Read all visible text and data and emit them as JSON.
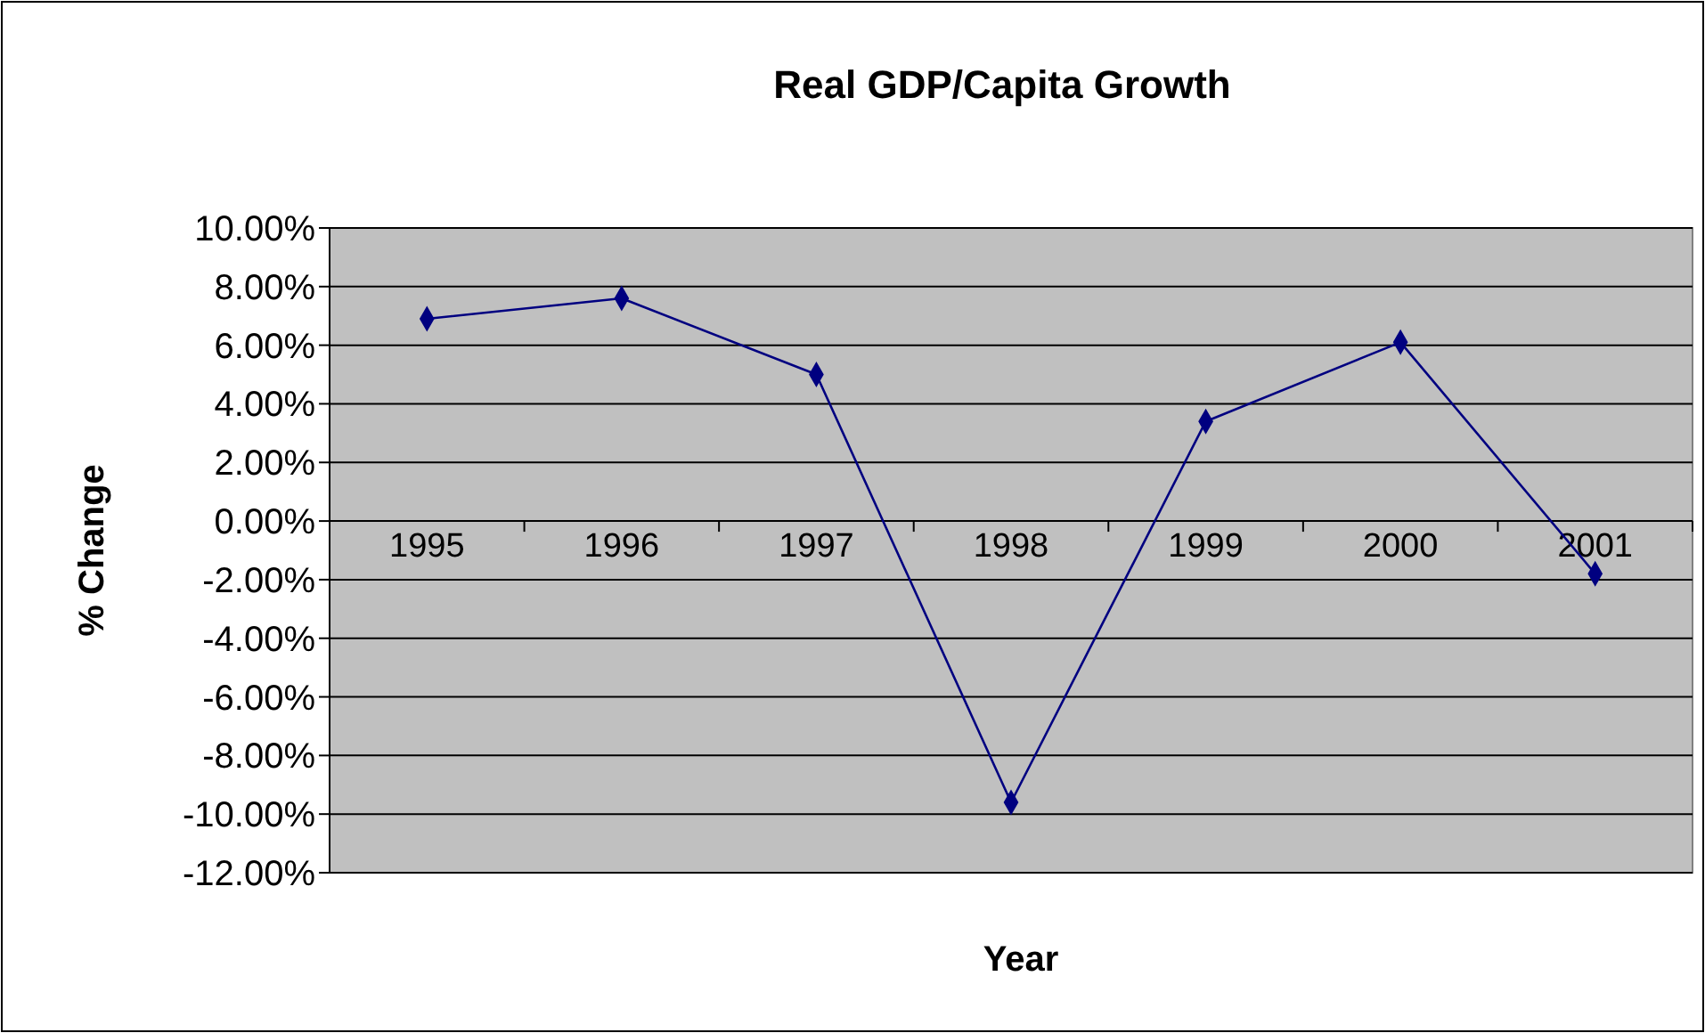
{
  "chart_data": {
    "type": "line",
    "title": "Real GDP/Capita Growth",
    "xlabel": "Year",
    "ylabel": "% Change",
    "categories": [
      "1995",
      "1996",
      "1997",
      "1998",
      "1999",
      "2000",
      "2001"
    ],
    "series": [
      {
        "color": "#000080",
        "values": [
          6.9,
          7.6,
          5.0,
          -9.6,
          3.4,
          6.1,
          -1.8
        ]
      }
    ],
    "ylim": [
      -12,
      10
    ],
    "yticks": [
      {
        "value": 10,
        "label": "10.00%"
      },
      {
        "value": 8,
        "label": "8.00%"
      },
      {
        "value": 6,
        "label": "6.00%"
      },
      {
        "value": 4,
        "label": "4.00%"
      },
      {
        "value": 2,
        "label": "2.00%"
      },
      {
        "value": 0,
        "label": "0.00%"
      },
      {
        "value": -2,
        "label": "-2.00%"
      },
      {
        "value": -4,
        "label": "-4.00%"
      },
      {
        "value": -6,
        "label": "-6.00%"
      },
      {
        "value": -8,
        "label": "-8.00%"
      },
      {
        "value": -10,
        "label": "-10.00%"
      },
      {
        "value": -12,
        "label": "-12.00%"
      }
    ],
    "grid": "y",
    "marker": "diamond",
    "line_style": "solid"
  }
}
